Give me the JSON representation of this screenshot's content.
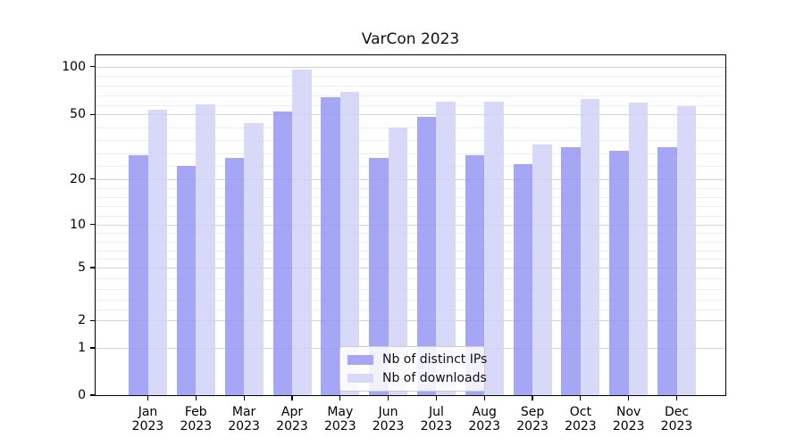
{
  "title": "VarCon 2023",
  "legend": {
    "items": [
      {
        "label": "Nb of distinct IPs",
        "color": "#a6a6f7"
      },
      {
        "label": "Nb of downloads",
        "color": "#d8d8f8"
      }
    ]
  },
  "y_axis": {
    "tick_labels": [
      "100",
      "50",
      "20",
      "10",
      "5",
      "2",
      "1",
      "0"
    ]
  },
  "chart_data": {
    "type": "bar",
    "title": "VarCon 2023",
    "categories": [
      "Jan 2023",
      "Feb 2023",
      "Mar 2023",
      "Apr 2023",
      "May 2023",
      "Jun 2023",
      "Jul 2023",
      "Aug 2023",
      "Sep 2023",
      "Oct 2023",
      "Nov 2023",
      "Dec 2023"
    ],
    "series": [
      {
        "name": "Nb of distinct IPs",
        "color_on_white": "#a6a6f7",
        "values": [
          31,
          26,
          30,
          53,
          68,
          30,
          49,
          31,
          27,
          35,
          33,
          35
        ]
      },
      {
        "name": "Nb of downloads",
        "color_on_white": "#d8d8f8",
        "values": [
          55,
          61,
          46,
          97,
          74,
          44,
          63,
          63,
          36,
          66,
          62,
          59
        ]
      }
    ],
    "xlabel": "",
    "ylabel": "",
    "yscale": "quasi-log (major ticks at 0,1,2,5,10,20,50,100; linear interpolation between ticks, 4 minor gridlines per gap above 2)",
    "yticks": [
      100,
      50,
      20,
      10,
      5,
      2,
      1,
      0
    ],
    "ylim": [
      0,
      110
    ],
    "grid": true,
    "legend_position": "lower center (inside axes)"
  }
}
